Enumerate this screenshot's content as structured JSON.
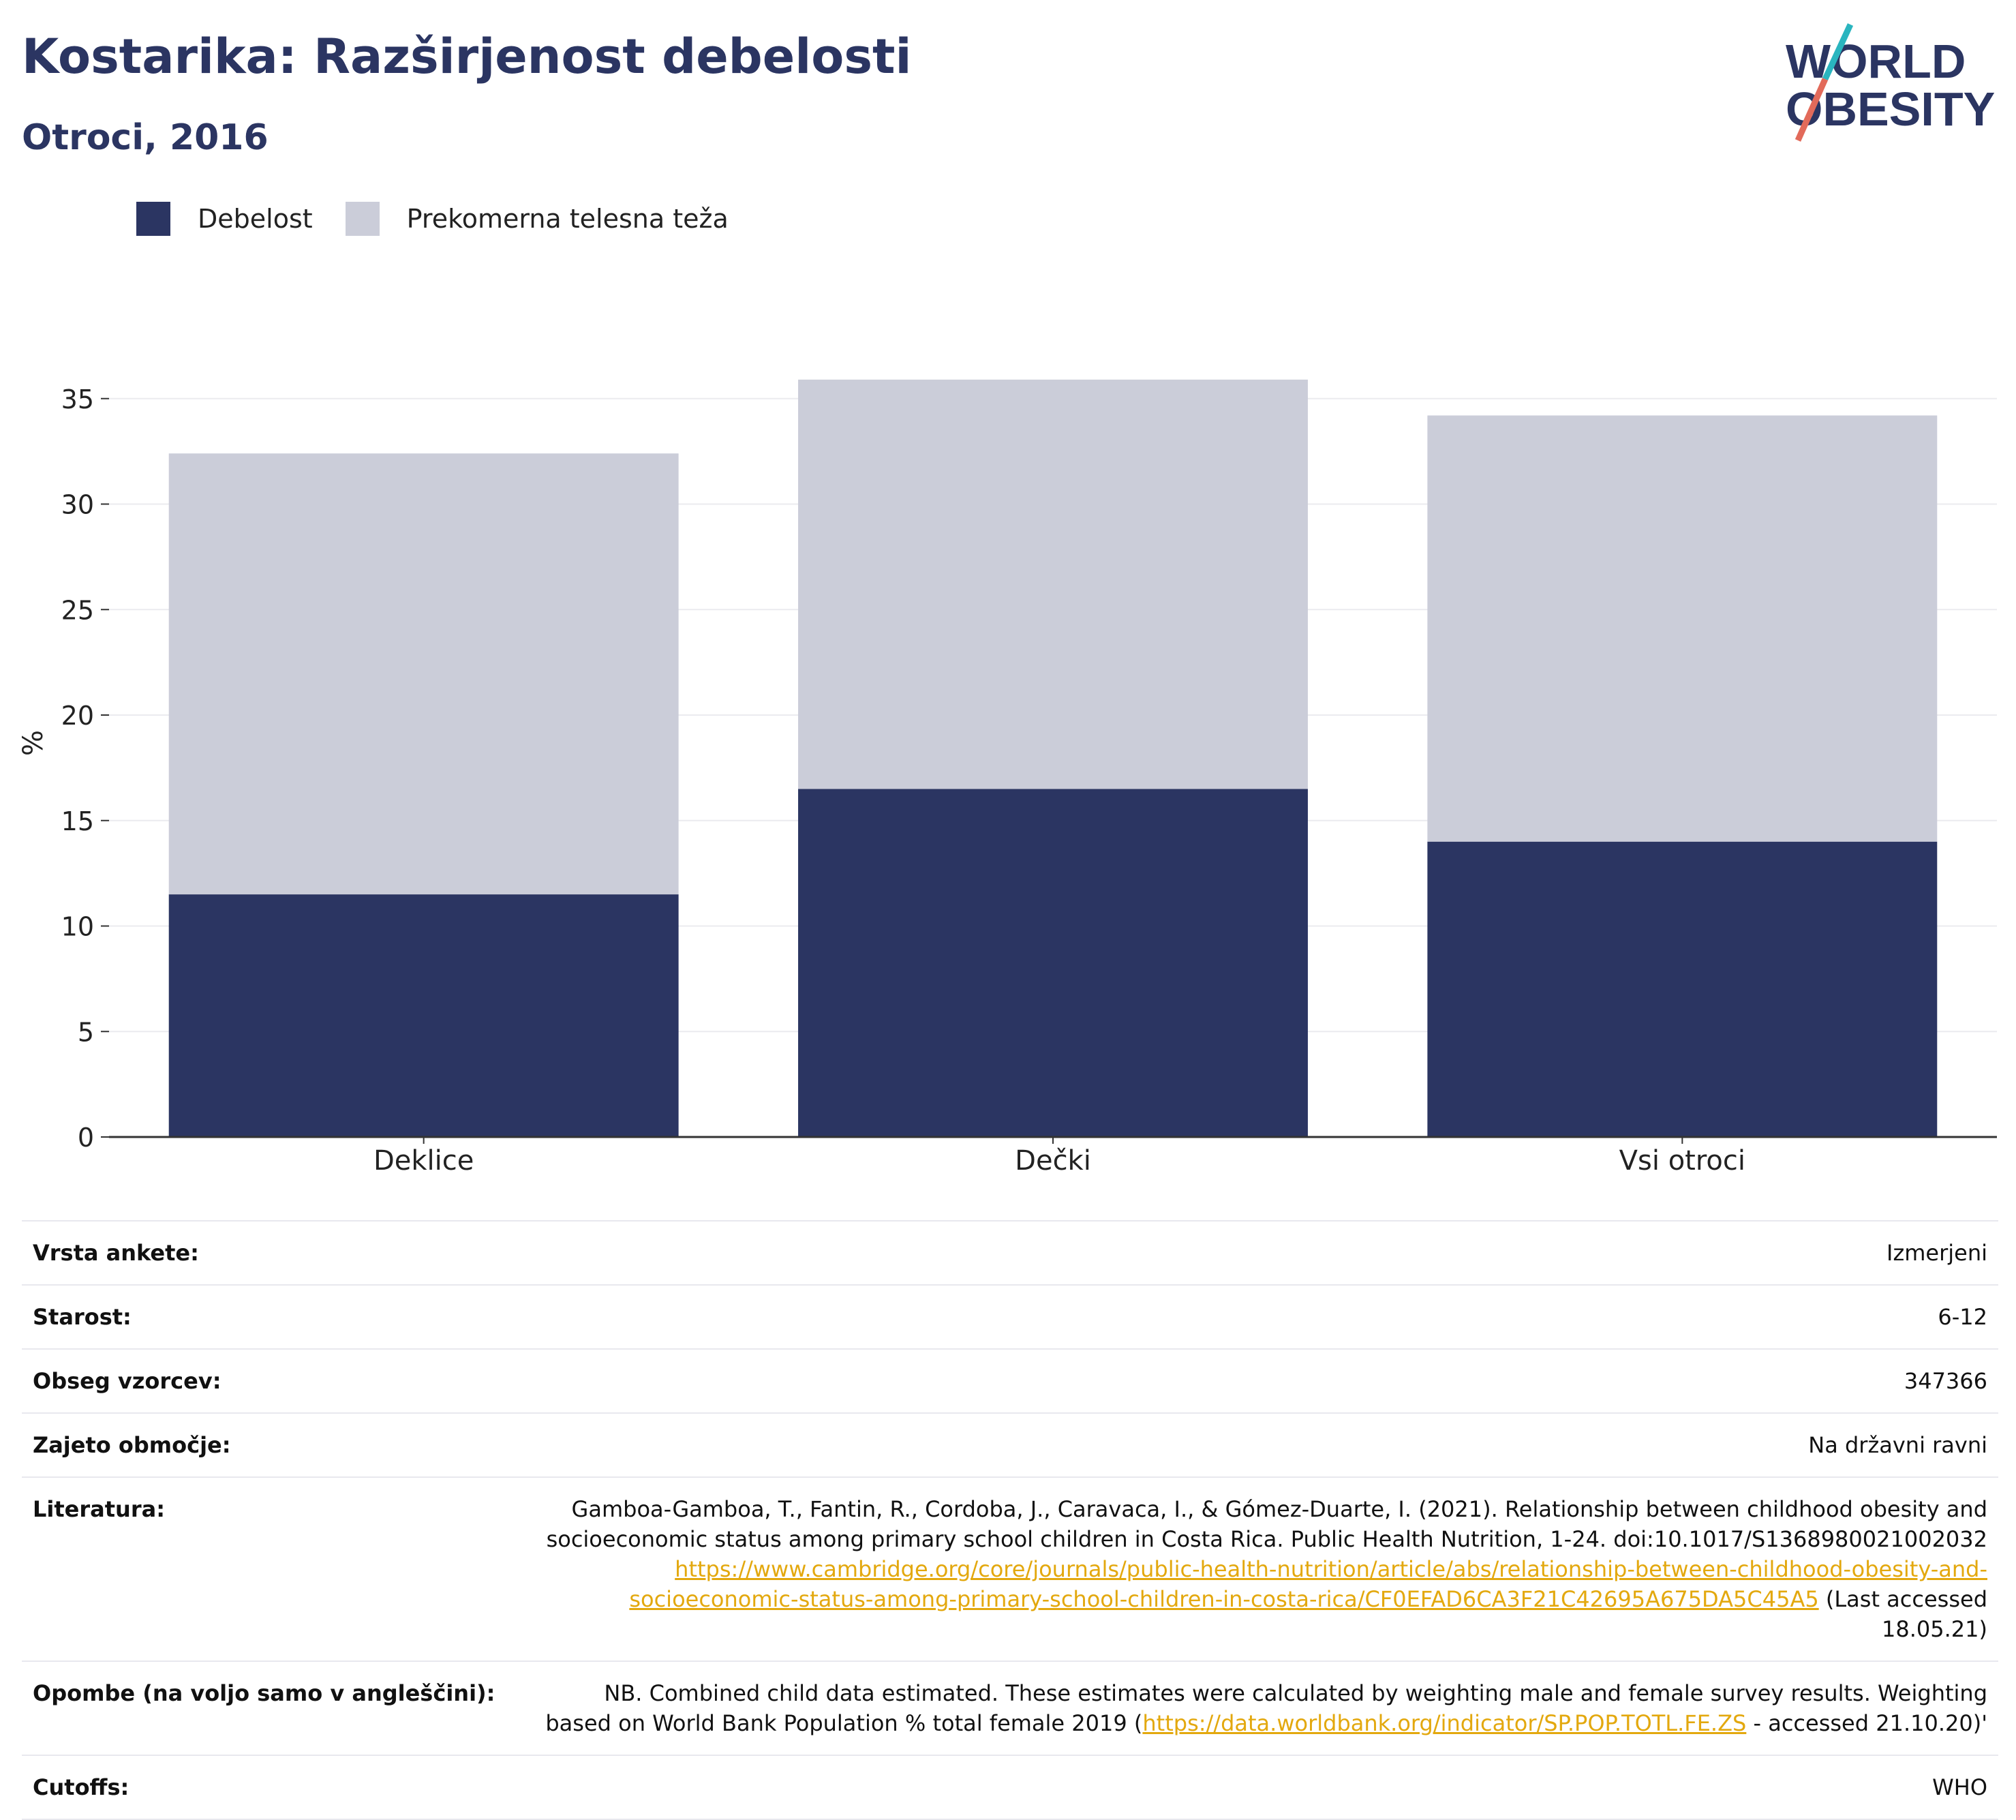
{
  "header": {
    "title": "Kostarika: Razširjenost debelosti",
    "subtitle": "Otroci, 2016",
    "logo_line1": "WORLD",
    "logo_line2": "OBESITY"
  },
  "colors": {
    "obesity": "#2b3562",
    "overweight": "#cbcdd9",
    "title": "#2b3562",
    "link": "#e3a80e",
    "logo_teal": "#2ab5bf",
    "logo_coral": "#e26a5a"
  },
  "chart_data": {
    "type": "bar",
    "stacked": true,
    "categories": [
      "Deklice",
      "Dečki",
      "Vsi otroci"
    ],
    "series": [
      {
        "name": "Debelost",
        "values": [
          11.5,
          16.5,
          14.0
        ]
      },
      {
        "name": "Prekomerna telesna teža",
        "values": [
          20.9,
          19.4,
          20.2
        ]
      }
    ],
    "ylabel": "%",
    "xlabel": "",
    "ylim": [
      0,
      36
    ],
    "yticks": [
      0,
      5,
      10,
      15,
      20,
      25,
      30,
      35
    ],
    "grid": true,
    "legend_position": "top-left"
  },
  "details": {
    "survey_type_label": "Vrsta ankete:",
    "survey_type_value": "Izmerjeni",
    "age_label": "Starost:",
    "age_value": "6-12",
    "sample_label": "Obseg vzorcev:",
    "sample_value": "347366",
    "area_label": "Zajeto območje:",
    "area_value": "Na državni ravni",
    "ref_label": "Literatura:",
    "ref_text": "Gamboa-Gamboa, T., Fantin, R., Cordoba, J., Caravaca, I., & Gómez-Duarte, I. (2021). Relationship between childhood obesity and socioeconomic status among primary school children in Costa Rica. Public Health Nutrition, 1-24. doi:10.1017/S1368980021002032",
    "ref_link": "https://www.cambridge.org/core/journals/public-health-nutrition/article/abs/relationship-between-childhood-obesity-and-socioeconomic-status-among-primary-school-children-in-costa-rica/CF0EFAD6CA3F21C42695A675DA5C45A5",
    "ref_suffix": "(Last accessed 18.05.21)",
    "notes_label": "Opombe (na voljo samo v angleščini):",
    "notes_text": "NB. Combined child data estimated. These estimates were calculated by weighting male and female survey results. Weighting based on World Bank Population % total female 2019 (",
    "notes_link": "https://data.worldbank.org/indicator/SP.POP.TOTL.FE.ZS",
    "notes_suffix": " - accessed 21.10.20)'",
    "cutoffs_label": "Cutoffs:",
    "cutoffs_value": "WHO"
  }
}
